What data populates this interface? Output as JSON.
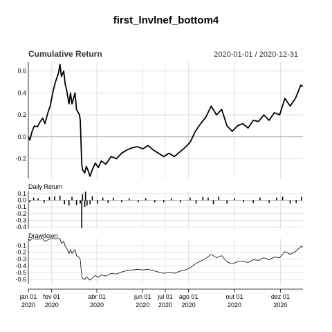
{
  "title": "first_lnvlnef_bottom4",
  "chart_data": [
    {
      "type": "line",
      "title": "Cumulative Return",
      "date_range": "2020-01-01 / 2020-12-31",
      "ylim": [
        -0.38,
        0.68
      ],
      "y_ticks": [
        -0.2,
        0.0,
        0.2,
        0.4,
        0.6
      ],
      "y_tick_labels": [
        "-0.2",
        "0.0",
        "0.2",
        "0.4",
        "0.6"
      ],
      "grid": true,
      "series": [
        {
          "values": [
            [
              "2020-01-01",
              0.0
            ],
            [
              "2020-01-03",
              -0.03
            ],
            [
              "2020-01-06",
              0.05
            ],
            [
              "2020-01-09",
              0.1
            ],
            [
              "2020-01-13",
              0.09
            ],
            [
              "2020-01-16",
              0.13
            ],
            [
              "2020-01-20",
              0.17
            ],
            [
              "2020-01-23",
              0.12
            ],
            [
              "2020-01-27",
              0.22
            ],
            [
              "2020-01-30",
              0.28
            ],
            [
              "2020-02-03",
              0.42
            ],
            [
              "2020-02-06",
              0.5
            ],
            [
              "2020-02-10",
              0.58
            ],
            [
              "2020-02-12",
              0.66
            ],
            [
              "2020-02-14",
              0.55
            ],
            [
              "2020-02-17",
              0.6
            ],
            [
              "2020-02-19",
              0.48
            ],
            [
              "2020-02-21",
              0.42
            ],
            [
              "2020-02-24",
              0.3
            ],
            [
              "2020-02-26",
              0.4
            ],
            [
              "2020-02-28",
              0.3
            ],
            [
              "2020-03-03",
              0.4
            ],
            [
              "2020-03-05",
              0.25
            ],
            [
              "2020-03-09",
              0.2
            ],
            [
              "2020-03-10",
              0.15
            ],
            [
              "2020-03-12",
              -0.25
            ],
            [
              "2020-03-13",
              -0.3
            ],
            [
              "2020-03-16",
              -0.33
            ],
            [
              "2020-03-18",
              -0.27
            ],
            [
              "2020-03-20",
              -0.3
            ],
            [
              "2020-03-23",
              -0.36
            ],
            [
              "2020-03-26",
              -0.3
            ],
            [
              "2020-03-30",
              -0.24
            ],
            [
              "2020-04-03",
              -0.28
            ],
            [
              "2020-04-07",
              -0.22
            ],
            [
              "2020-04-13",
              -0.25
            ],
            [
              "2020-04-20",
              -0.18
            ],
            [
              "2020-04-27",
              -0.2
            ],
            [
              "2020-05-04",
              -0.15
            ],
            [
              "2020-05-11",
              -0.12
            ],
            [
              "2020-05-18",
              -0.1
            ],
            [
              "2020-05-25",
              -0.09
            ],
            [
              "2020-06-01",
              -0.11
            ],
            [
              "2020-06-08",
              -0.08
            ],
            [
              "2020-06-15",
              -0.12
            ],
            [
              "2020-06-22",
              -0.15
            ],
            [
              "2020-06-29",
              -0.18
            ],
            [
              "2020-07-06",
              -0.15
            ],
            [
              "2020-07-13",
              -0.18
            ],
            [
              "2020-07-20",
              -0.14
            ],
            [
              "2020-07-27",
              -0.1
            ],
            [
              "2020-08-03",
              -0.05
            ],
            [
              "2020-08-10",
              0.05
            ],
            [
              "2020-08-17",
              0.12
            ],
            [
              "2020-08-24",
              0.18
            ],
            [
              "2020-08-31",
              0.28
            ],
            [
              "2020-09-07",
              0.2
            ],
            [
              "2020-09-14",
              0.25
            ],
            [
              "2020-09-21",
              0.1
            ],
            [
              "2020-09-28",
              0.05
            ],
            [
              "2020-10-05",
              0.1
            ],
            [
              "2020-10-12",
              0.12
            ],
            [
              "2020-10-19",
              0.08
            ],
            [
              "2020-10-26",
              0.15
            ],
            [
              "2020-11-02",
              0.14
            ],
            [
              "2020-11-09",
              0.2
            ],
            [
              "2020-11-16",
              0.15
            ],
            [
              "2020-11-23",
              0.22
            ],
            [
              "2020-11-30",
              0.2
            ],
            [
              "2020-12-07",
              0.35
            ],
            [
              "2020-12-14",
              0.28
            ],
            [
              "2020-12-21",
              0.35
            ],
            [
              "2020-12-28",
              0.47
            ],
            [
              "2020-12-31",
              0.46
            ]
          ]
        }
      ]
    },
    {
      "type": "bar",
      "title": "Daily Return",
      "ylim": [
        -0.43,
        0.14
      ],
      "y_ticks": [
        0.1,
        0.0,
        -0.1,
        -0.2,
        -0.3,
        -0.4
      ],
      "y_tick_labels": [
        "0.1",
        "0.0",
        "-0.1",
        "-0.2",
        "-0.3",
        "-0.4"
      ],
      "grid": true,
      "series": [
        {
          "values": [
            [
              "2020-01-03",
              -0.03
            ],
            [
              "2020-01-08",
              0.04
            ],
            [
              "2020-01-14",
              0.03
            ],
            [
              "2020-01-22",
              -0.04
            ],
            [
              "2020-01-29",
              0.05
            ],
            [
              "2020-02-05",
              0.06
            ],
            [
              "2020-02-12",
              0.07
            ],
            [
              "2020-02-18",
              -0.06
            ],
            [
              "2020-02-24",
              -0.08
            ],
            [
              "2020-02-28",
              0.05
            ],
            [
              "2020-03-05",
              -0.07
            ],
            [
              "2020-03-10",
              -0.05
            ],
            [
              "2020-03-12",
              -0.42
            ],
            [
              "2020-03-13",
              0.09
            ],
            [
              "2020-03-16",
              -0.1
            ],
            [
              "2020-03-17",
              0.13
            ],
            [
              "2020-03-19",
              -0.08
            ],
            [
              "2020-03-23",
              -0.06
            ],
            [
              "2020-03-26",
              0.06
            ],
            [
              "2020-04-02",
              -0.05
            ],
            [
              "2020-04-09",
              0.04
            ],
            [
              "2020-04-16",
              -0.04
            ],
            [
              "2020-04-23",
              0.04
            ],
            [
              "2020-05-04",
              -0.03
            ],
            [
              "2020-05-14",
              0.03
            ],
            [
              "2020-05-26",
              -0.03
            ],
            [
              "2020-06-05",
              0.03
            ],
            [
              "2020-06-17",
              -0.03
            ],
            [
              "2020-06-29",
              -0.03
            ],
            [
              "2020-07-09",
              0.03
            ],
            [
              "2020-07-21",
              -0.03
            ],
            [
              "2020-08-03",
              0.04
            ],
            [
              "2020-08-11",
              -0.05
            ],
            [
              "2020-08-20",
              0.05
            ],
            [
              "2020-08-27",
              0.04
            ],
            [
              "2020-09-03",
              -0.06
            ],
            [
              "2020-09-10",
              0.05
            ],
            [
              "2020-09-21",
              -0.05
            ],
            [
              "2020-10-01",
              0.03
            ],
            [
              "2020-10-13",
              -0.03
            ],
            [
              "2020-10-26",
              -0.04
            ],
            [
              "2020-11-04",
              0.04
            ],
            [
              "2020-11-16",
              -0.04
            ],
            [
              "2020-11-26",
              0.04
            ],
            [
              "2020-12-04",
              0.05
            ],
            [
              "2020-12-14",
              -0.05
            ],
            [
              "2020-12-22",
              -0.04
            ],
            [
              "2020-12-29",
              0.05
            ]
          ]
        }
      ]
    },
    {
      "type": "line",
      "title": "Drawdown",
      "ylim": [
        -0.67,
        0.0
      ],
      "y_ticks": [
        -0.1,
        -0.2,
        -0.3,
        -0.4,
        -0.5,
        -0.6
      ],
      "y_tick_labels": [
        "-0.1",
        "-0.2",
        "-0.3",
        "-0.4",
        "-0.5",
        "-0.6"
      ],
      "grid": true,
      "series": [
        {
          "values": [
            [
              "2020-01-01",
              0.0
            ],
            [
              "2020-01-03",
              -0.03
            ],
            [
              "2020-01-06",
              0.0
            ],
            [
              "2020-01-13",
              -0.01
            ],
            [
              "2020-01-20",
              0.0
            ],
            [
              "2020-01-23",
              -0.04
            ],
            [
              "2020-01-30",
              0.0
            ],
            [
              "2020-02-12",
              0.0
            ],
            [
              "2020-02-14",
              -0.07
            ],
            [
              "2020-02-17",
              -0.04
            ],
            [
              "2020-02-19",
              -0.11
            ],
            [
              "2020-02-21",
              -0.14
            ],
            [
              "2020-02-24",
              -0.22
            ],
            [
              "2020-02-26",
              -0.16
            ],
            [
              "2020-02-28",
              -0.22
            ],
            [
              "2020-03-03",
              -0.16
            ],
            [
              "2020-03-05",
              -0.25
            ],
            [
              "2020-03-09",
              -0.28
            ],
            [
              "2020-03-10",
              -0.31
            ],
            [
              "2020-03-12",
              -0.55
            ],
            [
              "2020-03-13",
              -0.58
            ],
            [
              "2020-03-16",
              -0.6
            ],
            [
              "2020-03-18",
              -0.56
            ],
            [
              "2020-03-23",
              -0.61
            ],
            [
              "2020-03-26",
              -0.58
            ],
            [
              "2020-03-30",
              -0.54
            ],
            [
              "2020-04-03",
              -0.57
            ],
            [
              "2020-04-07",
              -0.53
            ],
            [
              "2020-04-13",
              -0.55
            ],
            [
              "2020-04-20",
              -0.51
            ],
            [
              "2020-04-27",
              -0.52
            ],
            [
              "2020-05-04",
              -0.49
            ],
            [
              "2020-05-11",
              -0.47
            ],
            [
              "2020-05-18",
              -0.46
            ],
            [
              "2020-05-25",
              -0.45
            ],
            [
              "2020-06-01",
              -0.46
            ],
            [
              "2020-06-08",
              -0.45
            ],
            [
              "2020-06-15",
              -0.47
            ],
            [
              "2020-06-22",
              -0.49
            ],
            [
              "2020-06-29",
              -0.51
            ],
            [
              "2020-07-06",
              -0.49
            ],
            [
              "2020-07-13",
              -0.51
            ],
            [
              "2020-07-20",
              -0.48
            ],
            [
              "2020-07-27",
              -0.46
            ],
            [
              "2020-08-03",
              -0.43
            ],
            [
              "2020-08-10",
              -0.37
            ],
            [
              "2020-08-17",
              -0.33
            ],
            [
              "2020-08-24",
              -0.29
            ],
            [
              "2020-08-31",
              -0.23
            ],
            [
              "2020-09-07",
              -0.28
            ],
            [
              "2020-09-14",
              -0.25
            ],
            [
              "2020-09-21",
              -0.34
            ],
            [
              "2020-09-28",
              -0.37
            ],
            [
              "2020-10-05",
              -0.34
            ],
            [
              "2020-10-12",
              -0.33
            ],
            [
              "2020-10-19",
              -0.35
            ],
            [
              "2020-10-26",
              -0.31
            ],
            [
              "2020-11-02",
              -0.32
            ],
            [
              "2020-11-09",
              -0.28
            ],
            [
              "2020-11-16",
              -0.31
            ],
            [
              "2020-11-23",
              -0.27
            ],
            [
              "2020-11-30",
              -0.28
            ],
            [
              "2020-12-07",
              -0.19
            ],
            [
              "2020-12-14",
              -0.23
            ],
            [
              "2020-12-21",
              -0.19
            ],
            [
              "2020-12-28",
              -0.12
            ],
            [
              "2020-12-31",
              -0.12
            ]
          ]
        }
      ]
    }
  ],
  "x_axis": {
    "range": [
      "2020-01-01",
      "2020-12-31"
    ],
    "ticks": [
      {
        "date": "2020-01-01",
        "label": "jan 01",
        "year": "2020"
      },
      {
        "date": "2020-02-01",
        "label": "fev 01",
        "year": "2020"
      },
      {
        "date": "2020-04-01",
        "label": "abr 01",
        "year": "2020"
      },
      {
        "date": "2020-06-01",
        "label": "jun 01",
        "year": "2020"
      },
      {
        "date": "2020-07-01",
        "label": "jul 01",
        "year": "2020"
      },
      {
        "date": "2020-08-01",
        "label": "ago 01",
        "year": "2020"
      },
      {
        "date": "2020-10-01",
        "label": "out 01",
        "year": "2020"
      },
      {
        "date": "2020-12-01",
        "label": "dez 01",
        "year": "2020"
      }
    ]
  }
}
